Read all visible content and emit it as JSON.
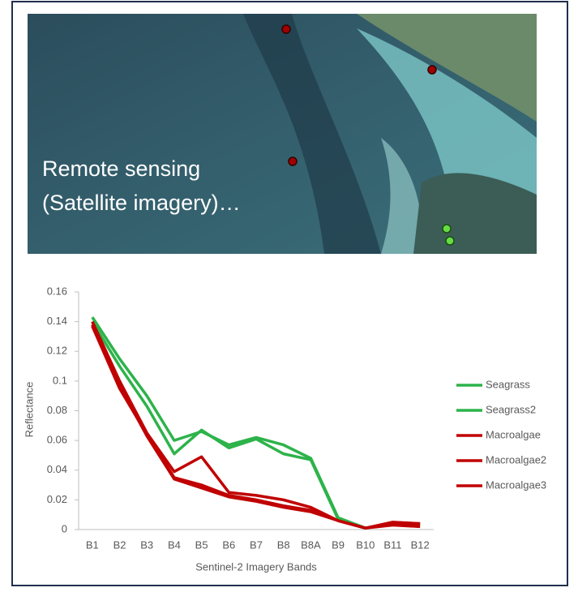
{
  "image_caption": [
    "Remote sensing",
    "(Satellite imagery)…"
  ],
  "chart_data": {
    "type": "line",
    "x_label": "Sentinel-2 Imagery Bands",
    "y_label": "Reflectance",
    "categories": [
      "B1",
      "B2",
      "B3",
      "B4",
      "B5",
      "B6",
      "B7",
      "B8",
      "B8A",
      "B9",
      "B10",
      "B11",
      "B12"
    ],
    "series": [
      {
        "name": "Seagrass",
        "color": "#2db34a",
        "values": [
          0.143,
          0.115,
          0.09,
          0.06,
          0.066,
          0.057,
          0.062,
          0.057,
          0.048,
          0.008,
          0.001,
          0.004,
          0.003
        ]
      },
      {
        "name": "Seagrass2",
        "color": "#2db34a",
        "values": [
          0.14,
          0.11,
          0.083,
          0.051,
          0.067,
          0.055,
          0.061,
          0.051,
          0.047,
          0.007,
          0.001,
          0.004,
          0.003
        ]
      },
      {
        "name": "Macroalgae",
        "color": "#c00000",
        "values": [
          0.14,
          0.1,
          0.065,
          0.039,
          0.049,
          0.025,
          0.023,
          0.02,
          0.015,
          0.006,
          0.001,
          0.005,
          0.004
        ]
      },
      {
        "name": "Macroalgae2",
        "color": "#c00000",
        "values": [
          0.138,
          0.097,
          0.063,
          0.034,
          0.028,
          0.022,
          0.019,
          0.015,
          0.012,
          0.006,
          0.001,
          0.004,
          0.004
        ]
      },
      {
        "name": "Macroalgae3",
        "color": "#c00000",
        "values": [
          0.137,
          0.095,
          0.064,
          0.035,
          0.03,
          0.023,
          0.02,
          0.016,
          0.013,
          0.006,
          0.001,
          0.003,
          0.002
        ]
      }
    ],
    "ylim": [
      0,
      0.16
    ],
    "yticks": [
      0,
      0.02,
      0.04,
      0.06,
      0.08,
      0.1,
      0.12,
      0.14,
      0.16
    ],
    "legend": "right"
  }
}
